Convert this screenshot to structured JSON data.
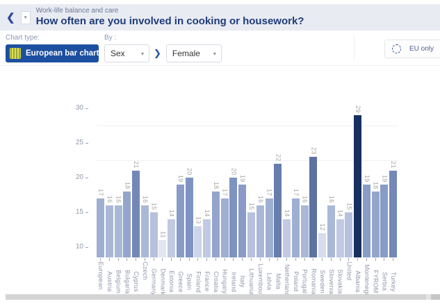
{
  "header": {
    "breadcrumb": "Work-life balance and care",
    "title": "How often are you involved in cooking or housework?"
  },
  "icons": {
    "back": "❮",
    "caret_small": "▾",
    "caret_solid": "▼",
    "chevron_right": "❯"
  },
  "toolbar": {
    "chart_type_label": "Chart type:",
    "chart_type_value": "European bar chart",
    "by_label": "By :",
    "by_dimension": "Sex",
    "by_value": "Female",
    "eu_only_label": "EU only"
  },
  "chart_data": {
    "type": "bar",
    "title": "How often are you involved in cooking or housework?",
    "xlabel": "",
    "ylabel": "",
    "legend": "none",
    "grid": "minor horizontal only",
    "ylim": [
      8.5,
      31.5
    ],
    "yticks": [
      30,
      25,
      20,
      15,
      10
    ],
    "minor_gridlines": [
      27.5,
      22.5
    ],
    "value_labels": "rotated above each bar",
    "categories": [
      "European Union",
      "Austria",
      "Belgium",
      "Bulgaria",
      "Cyprus",
      "Czech Republic",
      "Germany",
      "Denmark",
      "Estonia",
      "Greece",
      "Spain",
      "Finland",
      "France",
      "Croatia",
      "Hungary",
      "Ireland",
      "Italy",
      "Lithuania",
      "Luxembourg",
      "Latvia",
      "Malta",
      "Netherlands",
      "Poland",
      "Portugal",
      "Romania",
      "Sweden",
      "Slovenia",
      "Slovakia",
      "United Kingdom",
      "Albania",
      "Montenegro",
      "FYROM",
      "Serbia",
      "Turkey"
    ],
    "values": [
      17,
      16,
      16,
      18,
      21,
      16,
      15,
      11,
      14,
      19,
      20,
      13,
      14,
      18,
      17,
      20,
      19,
      15,
      16,
      17,
      22,
      14,
      17,
      16,
      23,
      12,
      16,
      14,
      15,
      29,
      19,
      18,
      19,
      21
    ],
    "color_scale": {
      "low": "#e2e6f3",
      "mid": "#7e93c1",
      "high": "#17305f",
      "low_value": 11,
      "mid_value": 20,
      "high_value": 29
    }
  }
}
